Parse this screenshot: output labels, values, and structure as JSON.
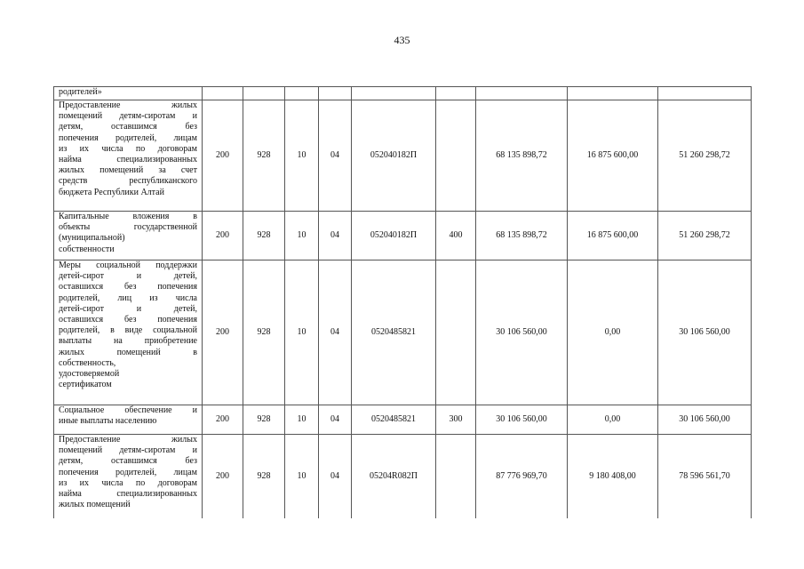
{
  "page_number": "435",
  "rows": [
    {
      "name_lines": [
        "родителей»"
      ],
      "c1": "",
      "c2": "",
      "c3": "",
      "c4": "",
      "code": "",
      "type": "",
      "v1": "",
      "v2": "",
      "v3": ""
    },
    {
      "name_lines": [
        "Предоставление жилых",
        "помещений детям-сиротам и",
        "детям, оставшимся без",
        "попечения родителей, лицам",
        "из их числа по договорам",
        "найма специализированных",
        "жилых помещений за счет",
        "средств республиканского",
        "бюджета Республики Алтай"
      ],
      "c1": "200",
      "c2": "928",
      "c3": "10",
      "c4": "04",
      "code": "052040182П",
      "type": "",
      "v1": "68 135 898,72",
      "v2": "16 875 600,00",
      "v3": "51 260 298,72"
    },
    {
      "name_lines": [
        "Капитальные вложения в",
        "объекты государственной",
        "(муниципальной)",
        "собственности"
      ],
      "c1": "200",
      "c2": "928",
      "c3": "10",
      "c4": "04",
      "code": "052040182П",
      "type": "400",
      "v1": "68 135 898,72",
      "v2": "16 875 600,00",
      "v3": "51 260 298,72"
    },
    {
      "name_lines": [
        "Меры социальной поддержки",
        "детей-сирот и детей,",
        "оставшихся без попечения",
        "родителей, лиц из числа",
        "детей-сирот и детей,",
        "оставшихся без попечения",
        "родителей, в виде социальной",
        "выплаты на приобретение",
        "жилых помещений в",
        "собственность,",
        "удостоверяемой",
        "сертификатом"
      ],
      "c1": "200",
      "c2": "928",
      "c3": "10",
      "c4": "04",
      "code": "0520485821",
      "type": "",
      "v1": "30 106 560,00",
      "v2": "0,00",
      "v3": "30 106 560,00"
    },
    {
      "name_lines": [
        "Социальное обеспечение и",
        "иные выплаты населению"
      ],
      "c1": "200",
      "c2": "928",
      "c3": "10",
      "c4": "04",
      "code": "0520485821",
      "type": "300",
      "v1": "30 106 560,00",
      "v2": "0,00",
      "v3": "30 106 560,00"
    },
    {
      "name_lines": [
        "Предоставление жилых",
        "помещений детям-сиротам и",
        "детям, оставшимся без",
        "попечения родителей, лицам",
        "из их числа по договорам",
        "найма специализированных",
        "жилых помещений"
      ],
      "c1": "200",
      "c2": "928",
      "c3": "10",
      "c4": "04",
      "code": "05204R082П",
      "type": "",
      "v1": "87 776 969,70",
      "v2": "9 180 408,00",
      "v3": "78 596 561,70"
    }
  ]
}
